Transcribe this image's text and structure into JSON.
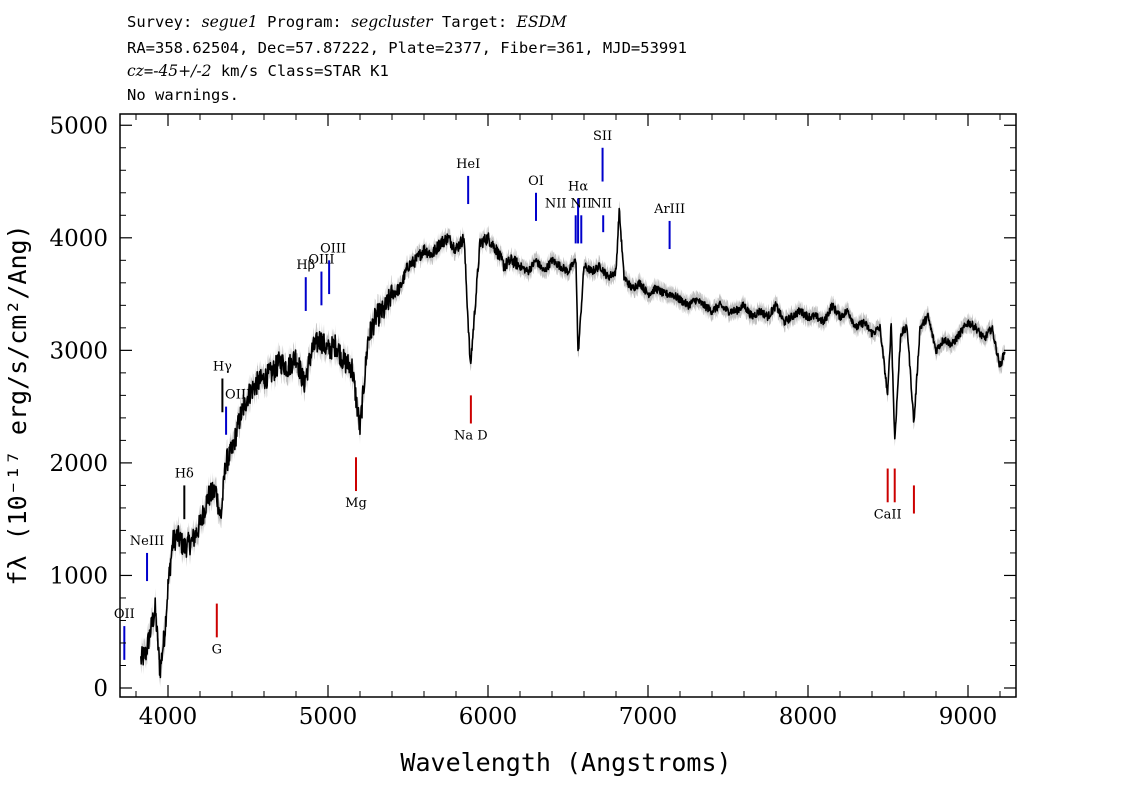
{
  "header": {
    "survey_label": "Survey:",
    "survey_value": "segue1",
    "program_label": "Program:",
    "program_value": "segcluster",
    "target_label": "Target:",
    "target_value": "ESDM",
    "line2": "RA=358.62504, Dec=57.87222, Plate=2377, Fiber=361, MJD=53991",
    "cz_prefix": "cz",
    "cz_eq": "=",
    "cz_value": "-45+/-2",
    "cz_suffix": "km/s Class=STAR K1",
    "line4": "No warnings."
  },
  "chart_data": {
    "type": "line",
    "title": "",
    "xlabel": "Wavelength (Angstroms)",
    "ylabel": "fλ (10⁻¹⁷ erg/s/cm²/Ang)",
    "xlim": [
      3700,
      9300
    ],
    "ylim": [
      -80,
      5100
    ],
    "xticks": [
      4000,
      5000,
      6000,
      7000,
      8000,
      9000
    ],
    "xtick_labels": [
      "4000",
      "5000",
      "6000",
      "7000",
      "8000",
      "9000"
    ],
    "yticks": [
      0,
      1000,
      2000,
      3000,
      4000,
      5000
    ],
    "ytick_labels": [
      "0",
      "1000",
      "2000",
      "3000",
      "4000",
      "5000"
    ],
    "series": [
      {
        "name": "flux",
        "color": "#000000",
        "error_color": "#c0c0c0",
        "x": [
          3830,
          3860,
          3890,
          3920,
          3950,
          3980,
          4000,
          4030,
          4060,
          4100,
          4150,
          4200,
          4250,
          4300,
          4330,
          4360,
          4400,
          4450,
          4500,
          4550,
          4600,
          4650,
          4700,
          4750,
          4800,
          4850,
          4900,
          4950,
          5000,
          5050,
          5100,
          5150,
          5200,
          5250,
          5300,
          5350,
          5400,
          5450,
          5500,
          5550,
          5600,
          5650,
          5700,
          5750,
          5800,
          5850,
          5890,
          5950,
          6000,
          6050,
          6100,
          6150,
          6200,
          6250,
          6300,
          6350,
          6400,
          6450,
          6500,
          6550,
          6563,
          6600,
          6650,
          6700,
          6750,
          6800,
          6820,
          6850,
          6900,
          6950,
          7000,
          7050,
          7100,
          7150,
          7200,
          7250,
          7300,
          7350,
          7400,
          7450,
          7500,
          7550,
          7600,
          7650,
          7700,
          7750,
          7800,
          7850,
          7900,
          7950,
          8000,
          8050,
          8100,
          8150,
          8200,
          8250,
          8300,
          8350,
          8400,
          8450,
          8498,
          8520,
          8542,
          8580,
          8620,
          8662,
          8700,
          8750,
          8800,
          8850,
          8900,
          8950,
          9000,
          9050,
          9100,
          9150,
          9200,
          9230
        ],
        "values": [
          250,
          300,
          500,
          700,
          150,
          500,
          900,
          1300,
          1350,
          1250,
          1300,
          1450,
          1700,
          1750,
          1500,
          2000,
          2100,
          2400,
          2600,
          2700,
          2750,
          2800,
          2900,
          2850,
          2950,
          2700,
          3000,
          3100,
          3000,
          3050,
          2900,
          2850,
          2300,
          3100,
          3300,
          3350,
          3500,
          3550,
          3750,
          3800,
          3900,
          3850,
          3950,
          4000,
          3900,
          4000,
          2850,
          3950,
          4000,
          3900,
          3750,
          3800,
          3750,
          3700,
          3800,
          3700,
          3800,
          3750,
          3700,
          3800,
          2950,
          3750,
          3700,
          3750,
          3650,
          3700,
          4250,
          3650,
          3550,
          3600,
          3500,
          3550,
          3500,
          3500,
          3450,
          3400,
          3450,
          3400,
          3350,
          3400,
          3350,
          3350,
          3400,
          3300,
          3350,
          3300,
          3400,
          3250,
          3300,
          3350,
          3300,
          3300,
          3250,
          3400,
          3300,
          3350,
          3200,
          3250,
          3150,
          3200,
          2600,
          3250,
          2200,
          3150,
          3200,
          2350,
          3200,
          3300,
          3000,
          3100,
          3050,
          3150,
          3250,
          3200,
          3100,
          3200,
          2850,
          3000
        ]
      }
    ],
    "annotations": [
      {
        "label": "HeI",
        "color": "#0000cc",
        "x": 5876,
        "y_top": 4550,
        "y_bottom": 4300
      },
      {
        "label": "OI",
        "color": "#0000cc",
        "x": 6300,
        "y_top": 4400,
        "y_bottom": 4150
      },
      {
        "label": "NII",
        "color": "#0000cc",
        "x": 6548,
        "y_top": 4200,
        "y_bottom": 3950
      },
      {
        "label": "Hα",
        "color": "#0000cc",
        "x": 6563,
        "y_top": 4350,
        "y_bottom": 3950
      },
      {
        "label": "NII",
        "color": "#0000cc",
        "x": 6583,
        "y_top": 4200,
        "y_bottom": 3950
      },
      {
        "label": "SII",
        "color": "#0000cc",
        "x": 6716,
        "y_top": 4800,
        "y_bottom": 4500
      },
      {
        "label": "NII",
        "color": "#0000cc",
        "x": 6720,
        "y_top": 4200,
        "y_bottom": 4050
      },
      {
        "label": "ArIII",
        "color": "#0000cc",
        "x": 7135,
        "y_top": 4150,
        "y_bottom": 3900
      },
      {
        "label": "Hβ",
        "color": "#0000cc",
        "x": 4861,
        "y_top": 3650,
        "y_bottom": 3350
      },
      {
        "label": "OIII",
        "color": "#0000cc",
        "x": 4959,
        "y_top": 3700,
        "y_bottom": 3400
      },
      {
        "label": "OIII",
        "color": "#0000cc",
        "x": 5007,
        "y_top": 3800,
        "y_bottom": 3500
      },
      {
        "label": "Hγ",
        "color": "#000000",
        "x": 4340,
        "y_top": 2750,
        "y_bottom": 2450
      },
      {
        "label": "OIII",
        "color": "#0000cc",
        "x": 4363,
        "y_top": 2500,
        "y_bottom": 2250
      },
      {
        "label": "Hδ",
        "color": "#000000",
        "x": 4102,
        "y_top": 1800,
        "y_bottom": 1500
      },
      {
        "label": "NeIII",
        "color": "#0000cc",
        "x": 3869,
        "y_top": 1200,
        "y_bottom": 950
      },
      {
        "label": "OII",
        "color": "#0000cc",
        "x": 3727,
        "y_top": 550,
        "y_bottom": 250
      },
      {
        "label": "Na D",
        "color": "#cc0000",
        "x": 5893,
        "y_top": 2600,
        "y_bottom": 2350
      },
      {
        "label": "Mg",
        "color": "#cc0000",
        "x": 5175,
        "y_top": 2050,
        "y_bottom": 1750
      },
      {
        "label": "G",
        "color": "#cc0000",
        "x": 4305,
        "y_top": 750,
        "y_bottom": 450
      },
      {
        "label": "CaII",
        "color": "#cc0000",
        "x": 8498,
        "y_top": 1950,
        "y_bottom": 1650
      },
      {
        "label": "CaII",
        "color": "#cc0000",
        "x": 8542,
        "y_top": 1950,
        "y_bottom": 1650
      },
      {
        "label": "CaII",
        "color": "#cc0000",
        "x": 8662,
        "y_top": 1800,
        "y_bottom": 1550
      }
    ]
  }
}
